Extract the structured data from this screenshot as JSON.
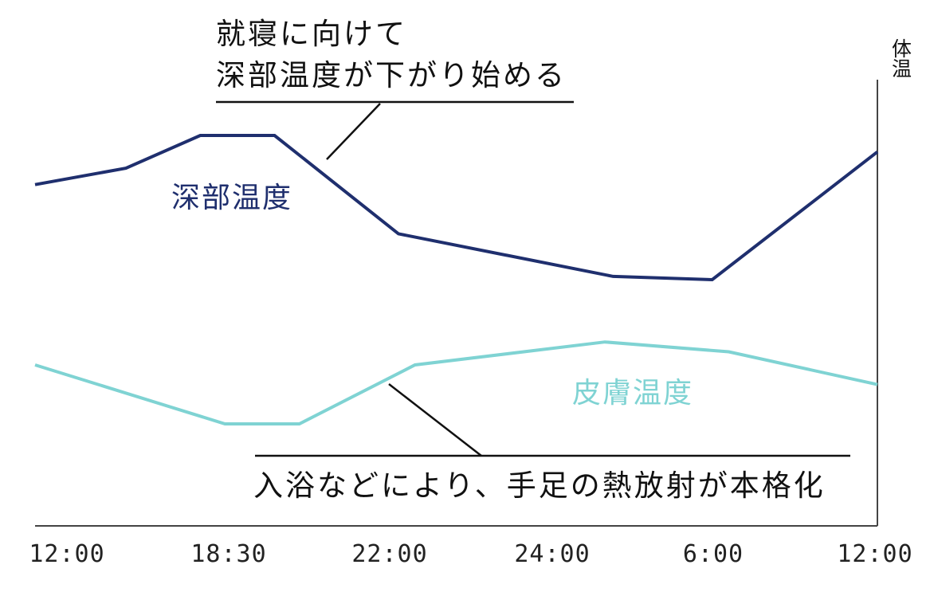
{
  "chart_data": {
    "type": "line",
    "title": "",
    "xlabel": "",
    "ylabel": "体温",
    "x_ticks": [
      "12:00",
      "18:30",
      "22:00",
      "24:00",
      "6:00",
      "12:00"
    ],
    "grid": false,
    "legend": "none",
    "series": [
      {
        "name": "深部温度",
        "color": "#1f2f6e",
        "points": [
          {
            "x": 0.0,
            "y": 6.6
          },
          {
            "x": 1.1,
            "y": 7.1
          },
          {
            "x": 2.0,
            "y": 8.1
          },
          {
            "x": 2.9,
            "y": 8.1
          },
          {
            "x": 4.4,
            "y": 5.1
          },
          {
            "x": 7.0,
            "y": 3.8
          },
          {
            "x": 8.2,
            "y": 3.7
          },
          {
            "x": 10.2,
            "y": 7.6
          }
        ]
      },
      {
        "name": "皮膚温度",
        "color": "#7fd3d3",
        "points": [
          {
            "x": 0.0,
            "y": 1.1
          },
          {
            "x": 2.3,
            "y": -0.7
          },
          {
            "x": 3.2,
            "y": -0.7
          },
          {
            "x": 4.6,
            "y": 1.1
          },
          {
            "x": 6.9,
            "y": 1.8
          },
          {
            "x": 8.4,
            "y": 1.5
          },
          {
            "x": 10.2,
            "y": 0.5
          }
        ]
      }
    ],
    "annotations": [
      {
        "id": "top",
        "lines": [
          "就寝に向けて",
          "深部温度が下がり始める"
        ]
      },
      {
        "id": "bottom",
        "lines": [
          "入浴などにより、手足の熱放射が本格化"
        ]
      }
    ]
  }
}
